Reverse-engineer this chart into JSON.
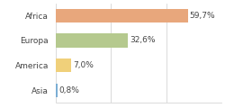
{
  "categories": [
    "Africa",
    "Europa",
    "America",
    "Asia"
  ],
  "values": [
    59.7,
    32.6,
    7.0,
    0.8
  ],
  "labels": [
    "59,7%",
    "32,6%",
    "7,0%",
    "0,8%"
  ],
  "bar_colors": [
    "#e8a77c",
    "#b5c98e",
    "#f0d07a",
    "#7baed4"
  ],
  "background_color": "#ffffff",
  "xlim": [
    0,
    75
  ],
  "label_fontsize": 6.5,
  "category_fontsize": 6.5,
  "bar_height": 0.55
}
